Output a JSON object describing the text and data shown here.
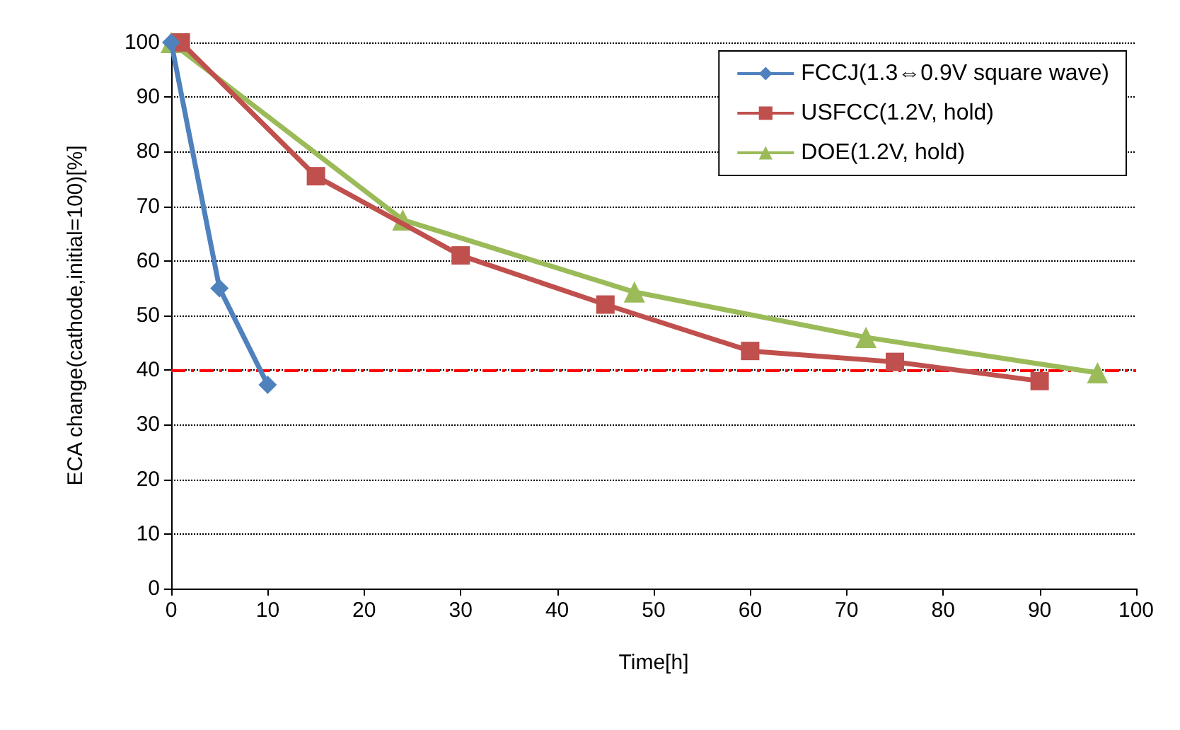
{
  "chart_data": {
    "type": "line",
    "xlabel": "Time[h]",
    "ylabel": "ECA change(cathode,initial=100)[%]",
    "xlim": [
      0,
      100
    ],
    "xticks": [
      0,
      10,
      20,
      30,
      40,
      50,
      60,
      70,
      80,
      90,
      100
    ],
    "ylim": [
      0,
      100
    ],
    "yticks": [
      0,
      10,
      20,
      30,
      40,
      50,
      60,
      70,
      80,
      90,
      100
    ],
    "grid": "y",
    "legend": "top right",
    "series": [
      {
        "name": "FCCJ(1.3⇔0.9V square wave)",
        "color": "#4f81bd",
        "marker": "diamond",
        "x": [
          0,
          5,
          10
        ],
        "values": [
          100,
          55,
          37.3
        ]
      },
      {
        "name": "USFCC(1.2V, hold)",
        "color": "#c0504d",
        "marker": "square",
        "x": [
          1,
          15,
          30,
          45,
          60,
          75,
          90
        ],
        "values": [
          100,
          75.5,
          61,
          52,
          43.5,
          41.5,
          38
        ]
      },
      {
        "name": "DOE(1.2V, hold)",
        "color": "#9bbb59",
        "marker": "triangle",
        "x": [
          0,
          24,
          48,
          72,
          96
        ],
        "values": [
          100,
          67.5,
          54.3,
          46,
          39.5
        ]
      }
    ],
    "ref_lines": [
      {
        "axis": "y",
        "value": 40,
        "color": "#ff0000",
        "line_style": "dashed"
      }
    ]
  }
}
